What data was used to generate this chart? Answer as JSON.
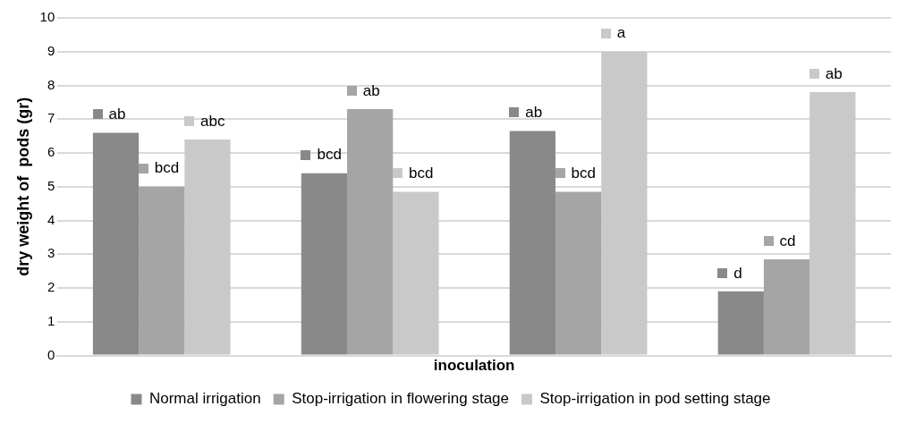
{
  "chart_data": {
    "type": "bar",
    "xlabel": "inoculation",
    "ylabel": "dry weight of  pods (gr)",
    "categories": [
      null,
      null,
      null,
      null
    ],
    "series": [
      {
        "name": "Normal irrigation",
        "color": "#898989",
        "values": [
          6.6,
          5.4,
          6.65,
          1.9
        ],
        "value_labels": [
          "ab",
          "bcd",
          "ab",
          "d"
        ]
      },
      {
        "name": "Stop-irrigation in flowering stage",
        "color": "#a5a5a5",
        "values": [
          5.0,
          7.3,
          4.85,
          2.85
        ],
        "value_labels": [
          "bcd",
          "ab",
          "bcd",
          "cd"
        ]
      },
      {
        "name": "Stop-irrigation in pod setting stage",
        "color": "#c9c9c9",
        "values": [
          6.4,
          4.85,
          9.0,
          7.8
        ],
        "value_labels": [
          "abc",
          "bcd",
          "a",
          "ab"
        ]
      }
    ],
    "ylim": [
      0,
      10
    ],
    "yticks": [
      0,
      1,
      2,
      3,
      4,
      5,
      6,
      7,
      8,
      9,
      10
    ],
    "grid": "y",
    "legend": "bottom"
  }
}
